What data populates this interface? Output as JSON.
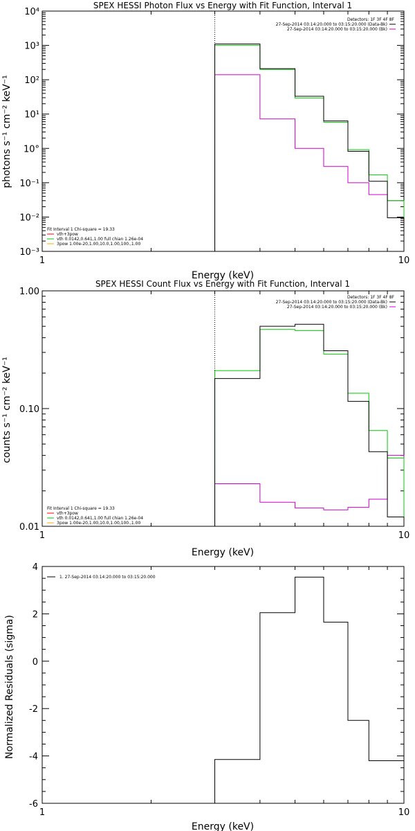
{
  "panels": [
    {
      "title": "SPEX HESSI Photon Flux vs Energy with Fit Function, Interval 1",
      "xlabel": "Energy (keV)",
      "ylabel": "photons s⁻¹ cm⁻² keV⁻¹",
      "xticks": [
        "1",
        "10"
      ],
      "yticks": [
        "10³",
        "10²",
        "10¹",
        "10°",
        "10⁻¹",
        "10⁻²",
        "10⁻³",
        "10⁴"
      ],
      "legend_tr": [
        "Detectors: 1F 3F 4F 8F",
        "27-Sep-2014 03:14:20.000 to 03:15:20.000 (Data-Bk)",
        "27-Sep-2014 03:14:20.000 to 03:15:20.000 (Bk)"
      ],
      "legend_bl": [
        "Fit Interval 1    Chi-square = 19.33",
        "vth+3pow",
        "vth 0.0142,0.641,1.00  full chian 1.26e-04",
        "3pow 1.00e-20,1.00,10.0,1.00,100.,1.00"
      ]
    },
    {
      "title": "SPEX HESSI Count Flux vs Energy with Fit Function, Interval 1",
      "xlabel": "Energy (keV)",
      "ylabel": "counts s⁻¹ cm⁻² keV⁻¹",
      "xticks": [
        "1",
        "10"
      ],
      "yticks": [
        "1.00",
        "0.10",
        "0.01"
      ],
      "legend_tr": [
        "Detectors: 1F 3F 4F 8F",
        "27-Sep-2014 03:14:20.000 to 03:15:20.000 (Data-Bk)",
        "27-Sep-2014 03:14:20.000 to 03:15:20.000 (Bk)"
      ],
      "legend_bl": [
        "Fit Interval 1    Chi-square = 19.33",
        "vth+3pow",
        "vth 0.0142,0.641,1.00  full chian 1.26e-04",
        "3pow 1.00e-20,1.00,10.0,1.00,100.,1.00"
      ]
    },
    {
      "title": "",
      "xlabel": "Energy (keV)",
      "ylabel": "Normalized Residuals (sigma)",
      "xticks": [
        "1",
        "10"
      ],
      "yticks": [
        "4",
        "2",
        "0",
        "-2",
        "-4",
        "-6"
      ],
      "legend_tl": [
        "1. 27-Sep-2014 03:14:20.000 to 03:15:20.000"
      ]
    }
  ],
  "colors": {
    "data": "#000000",
    "fit": "#00cc00",
    "background": "#cc00cc",
    "vth": "#ff0000",
    "pow": "#ffaa00"
  },
  "chart_data": [
    {
      "type": "line",
      "title": "SPEX HESSI Photon Flux vs Energy with Fit Function, Interval 1",
      "xlabel": "Energy (keV)",
      "ylabel": "photons s⁻¹ cm⁻² keV⁻¹",
      "x_scale": "log",
      "y_scale": "log",
      "xlim": [
        1,
        10
      ],
      "ylim": [
        0.001,
        10000
      ],
      "vline_x": 3,
      "bin_edges": [
        3,
        4,
        5,
        6,
        7,
        8,
        9,
        10
      ],
      "series": [
        {
          "name": "27-Sep-2014 03:14:20.000 to 03:15:20.000 (Data-Bk)",
          "color": "#000000",
          "values": [
            1100,
            210,
            33,
            6.3,
            0.82,
            0.11,
            0.0095
          ]
        },
        {
          "name": "vth+3pow",
          "color": "#00cc00",
          "values": [
            1000,
            200,
            29,
            5.8,
            0.92,
            0.17,
            0.03
          ]
        },
        {
          "name": "27-Sep-2014 03:14:20.000 to 03:15:20.000 (Bk)",
          "color": "#cc00cc",
          "values": [
            140,
            7.2,
            1.0,
            0.3,
            0.1,
            0.045,
            0.03
          ]
        }
      ]
    },
    {
      "type": "line",
      "title": "SPEX HESSI Count Flux vs Energy with Fit Function, Interval 1",
      "xlabel": "Energy (keV)",
      "ylabel": "counts s⁻¹ cm⁻² keV⁻¹",
      "x_scale": "log",
      "y_scale": "log",
      "xlim": [
        1,
        10
      ],
      "ylim": [
        0.01,
        1.0
      ],
      "vline_x": 3,
      "bin_edges": [
        3,
        4,
        5,
        6,
        7,
        8,
        9,
        10
      ],
      "series": [
        {
          "name": "27-Sep-2014 03:14:20.000 to 03:15:20.000 (Data-Bk)",
          "color": "#000000",
          "values": [
            0.18,
            0.5,
            0.52,
            0.31,
            0.115,
            0.043,
            0.012
          ]
        },
        {
          "name": "vth+3pow",
          "color": "#00cc00",
          "values": [
            0.21,
            0.47,
            0.46,
            0.29,
            0.135,
            0.065,
            0.038
          ]
        },
        {
          "name": "27-Sep-2014 03:14:20.000 to 03:15:20.000 (Bk)",
          "color": "#cc00cc",
          "values": [
            0.023,
            0.016,
            0.0143,
            0.0138,
            0.0145,
            0.017,
            0.04
          ]
        }
      ]
    },
    {
      "type": "line",
      "title": "",
      "xlabel": "Energy (keV)",
      "ylabel": "Normalized Residuals (sigma)",
      "x_scale": "log",
      "y_scale": "linear",
      "xlim": [
        1,
        10
      ],
      "ylim": [
        -6,
        4
      ],
      "bin_edges": [
        3,
        4,
        5,
        6,
        7,
        8,
        9,
        10
      ],
      "series": [
        {
          "name": "1. 27-Sep-2014 03:14:20.000 to 03:15:20.000",
          "color": "#000000",
          "values": [
            -4.15,
            2.05,
            3.55,
            1.65,
            -2.5,
            -4.2,
            -4.2
          ]
        }
      ]
    }
  ]
}
